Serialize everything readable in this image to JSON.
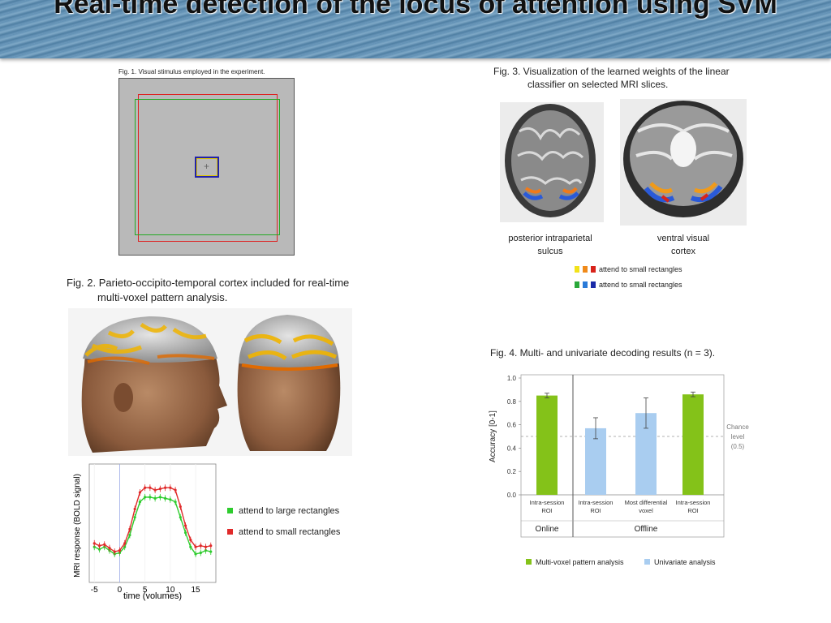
{
  "title": "Real-time detection of the locus of attention using SVM",
  "fig1": {
    "caption": "Fig. 1. Visual stimulus employed in the experiment.",
    "fixation": "+"
  },
  "fig2": {
    "caption_line1": "Fig. 2. Parieto-occipito-temporal cortex included for real-time",
    "caption_line2": "multi-voxel pattern analysis."
  },
  "fig3": {
    "caption_line1": "Fig. 3. Visualization of the learned weights of the linear",
    "caption_line2": "classifier on selected MRI slices.",
    "label_left_line1": "posterior intraparietal",
    "label_left_line2": "sulcus",
    "label_right_line1": "ventral visual",
    "label_right_line2": "cortex",
    "legend": [
      "attend to small rectangles",
      "attend to small rectangles"
    ],
    "legend_colors_warm": [
      "#f2e21a",
      "#f08a1a",
      "#d8231a"
    ],
    "legend_colors_cool": [
      "#2aa83a",
      "#2a7ad8",
      "#1a2aa8"
    ]
  },
  "fig4": {
    "caption": "Fig. 4. Multi- and univariate decoding results (n = 3).",
    "chance_label": [
      "Chance",
      "level",
      "(0.5)"
    ],
    "group_labels": [
      "Online",
      "Offline"
    ],
    "legend": [
      "Multi-voxel pattern analysis",
      "Univariate analysis"
    ],
    "colors": {
      "mvpa": "#84c219",
      "univariate": "#a9cdf0"
    }
  },
  "chart_data": [
    {
      "type": "line",
      "xlabel": "time (volumes)",
      "ylabel": "MRI response (BOLD signal)",
      "xlim": [
        -6,
        19
      ],
      "xticks": [
        -5,
        0,
        5,
        10,
        15
      ],
      "series": [
        {
          "name": "attend to large rectangles",
          "color": "#2ecc2e",
          "x": [
            -5,
            -4,
            -3,
            -2,
            -1,
            0,
            1,
            2,
            3,
            4,
            5,
            6,
            7,
            8,
            9,
            10,
            11,
            12,
            13,
            14,
            15,
            16,
            17,
            18
          ],
          "values": [
            0.3,
            0.28,
            0.3,
            0.27,
            0.24,
            0.25,
            0.3,
            0.4,
            0.55,
            0.68,
            0.72,
            0.72,
            0.71,
            0.72,
            0.71,
            0.7,
            0.68,
            0.55,
            0.42,
            0.3,
            0.24,
            0.25,
            0.27,
            0.26
          ]
        },
        {
          "name": "attend to small rectangles",
          "color": "#e02a2a",
          "x": [
            -5,
            -4,
            -3,
            -2,
            -1,
            0,
            1,
            2,
            3,
            4,
            5,
            6,
            7,
            8,
            9,
            10,
            11,
            12,
            13,
            14,
            15,
            16,
            17,
            18
          ],
          "values": [
            0.33,
            0.31,
            0.32,
            0.29,
            0.26,
            0.27,
            0.33,
            0.45,
            0.62,
            0.76,
            0.8,
            0.8,
            0.78,
            0.79,
            0.8,
            0.8,
            0.78,
            0.64,
            0.48,
            0.36,
            0.3,
            0.31,
            0.3,
            0.31
          ]
        }
      ]
    },
    {
      "type": "bar",
      "ylabel": "Accuracy [0-1]",
      "ylim": [
        0.0,
        1.0
      ],
      "yticks": [
        "0.0",
        "0.2",
        "0.4",
        "0.6",
        "0.8",
        "1.0"
      ],
      "categories": [
        "Intra-session ROI",
        "Intra-session ROI",
        "Most differential voxel",
        "Intra-session ROI"
      ],
      "category_lines": [
        [
          "Intra-session",
          "ROI"
        ],
        [
          "Intra-session",
          "ROI"
        ],
        [
          "Most differential",
          "voxel"
        ],
        [
          "Intra-session",
          "ROI"
        ]
      ],
      "values": [
        0.85,
        0.57,
        0.7,
        0.86
      ],
      "errors": [
        0.02,
        0.09,
        0.13,
        0.02
      ],
      "bar_series": [
        "mvpa",
        "univariate",
        "univariate",
        "mvpa"
      ],
      "chance_level": 0.5
    }
  ]
}
